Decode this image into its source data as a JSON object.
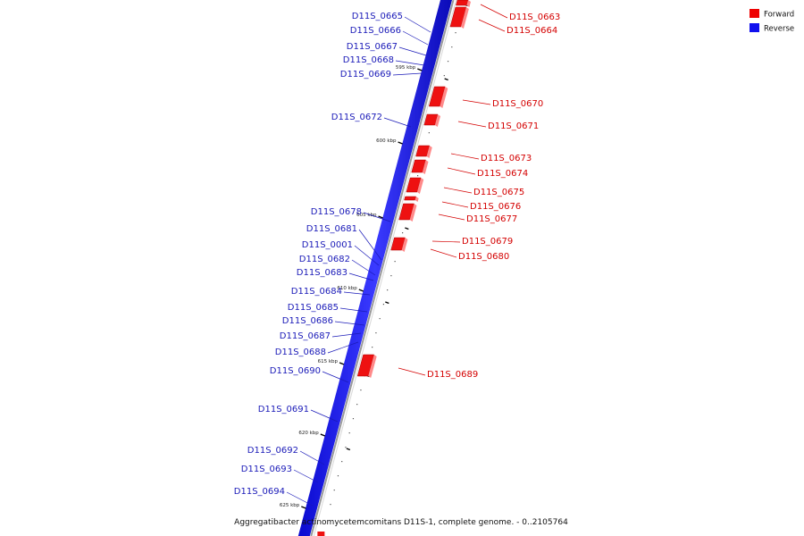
{
  "legend": [
    {
      "label": "Forward",
      "color": "#ee0000"
    },
    {
      "label": "Reverse",
      "color": "#1010ee"
    }
  ],
  "caption": "Aggregatibacter actinomycetemcomitans D11S-1, complete genome. - 0..2105764",
  "ticks": [
    "595 kbp",
    "600 kbp",
    "605 kbp",
    "610 kbp",
    "615 kbp",
    "620 kbp",
    "625 kbp"
  ],
  "forward_genes": [
    "D11S_0663",
    "D11S_0664",
    "D11S_0670",
    "D11S_0671",
    "D11S_0673",
    "D11S_0674",
    "D11S_0675",
    "D11S_0676",
    "D11S_0677",
    "D11S_0679",
    "D11S_0680",
    "D11S_0689"
  ],
  "reverse_genes": [
    "D11S_0665",
    "D11S_0666",
    "D11S_0667",
    "D11S_0668",
    "D11S_0669",
    "D11S_0672",
    "D11S_0678",
    "D11S_0681",
    "D11S_0001",
    "D11S_0682",
    "D11S_0683",
    "D11S_0684",
    "D11S_0685",
    "D11S_0686",
    "D11S_0687",
    "D11S_0688",
    "D11S_0690",
    "D11S_0691",
    "D11S_0692",
    "D11S_0693",
    "D11S_0694"
  ]
}
